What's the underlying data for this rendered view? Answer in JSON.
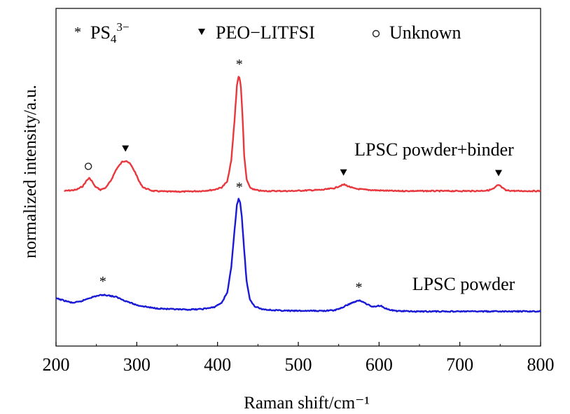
{
  "chart_data": {
    "type": "line",
    "title": "",
    "xlabel": "Raman shift/cm⁻¹",
    "ylabel": "normalized intensity/a.u.",
    "xlim": [
      200,
      800
    ],
    "x_ticks": [
      "200",
      "300",
      "400",
      "500",
      "600",
      "700",
      "800"
    ],
    "y_ticks_labeled": false,
    "grid": false,
    "legend": {
      "placement": "top",
      "items": [
        {
          "marker": "asterisk",
          "label_main": "PS",
          "label_sub": "4",
          "label_sup": "3−"
        },
        {
          "marker": "triangle-down",
          "label": "PEO−LITFSI"
        },
        {
          "marker": "circle-open",
          "label": "Unknown"
        }
      ]
    },
    "series": [
      {
        "name": "LPSC powder+binder",
        "color": "#e8383d",
        "x": [
          210,
          225,
          233,
          238,
          241,
          244,
          248,
          255,
          262,
          268,
          275,
          282,
          287,
          292,
          298,
          303,
          308,
          320,
          340,
          360,
          380,
          395,
          405,
          412,
          417,
          421,
          424,
          426,
          427.5,
          429,
          431,
          433,
          436,
          440,
          446,
          455,
          470,
          490,
          510,
          530,
          545,
          552,
          557,
          562,
          570,
          585,
          600,
          620,
          640,
          660,
          680,
          700,
          720,
          735,
          742,
          746,
          749,
          752,
          757,
          770,
          790,
          800
        ],
        "y": [
          0.02,
          0.03,
          0.06,
          0.11,
          0.13,
          0.11,
          0.06,
          0.03,
          0.05,
          0.11,
          0.21,
          0.27,
          0.28,
          0.25,
          0.18,
          0.1,
          0.05,
          0.02,
          0.015,
          0.015,
          0.02,
          0.03,
          0.05,
          0.1,
          0.28,
          0.62,
          0.92,
          1.0,
          0.98,
          0.9,
          0.65,
          0.32,
          0.12,
          0.05,
          0.03,
          0.02,
          0.02,
          0.02,
          0.025,
          0.03,
          0.045,
          0.065,
          0.075,
          0.06,
          0.04,
          0.03,
          0.025,
          0.02,
          0.02,
          0.02,
          0.02,
          0.02,
          0.02,
          0.025,
          0.04,
          0.065,
          0.07,
          0.05,
          0.025,
          0.02,
          0.02,
          0.02
        ],
        "curve_label": "LPSC powder+binder",
        "markers": [
          {
            "x": 240,
            "symbol": "circle-open"
          },
          {
            "x": 286,
            "symbol": "triangle-down"
          },
          {
            "x": 427,
            "symbol": "asterisk"
          },
          {
            "x": 556,
            "symbol": "triangle-down"
          },
          {
            "x": 748,
            "symbol": "triangle-down"
          }
        ]
      },
      {
        "name": "LPSC powder",
        "color": "#1a1ad6",
        "x": [
          200,
          210,
          220,
          230,
          240,
          250,
          258,
          265,
          275,
          285,
          300,
          320,
          340,
          360,
          380,
          395,
          405,
          412,
          417,
          421,
          424,
          426,
          428,
          430,
          433,
          436,
          440,
          446,
          455,
          470,
          490,
          510,
          530,
          545,
          555,
          563,
          570,
          576,
          580,
          585,
          590,
          595,
          598,
          602,
          606,
          612,
          620,
          640,
          660,
          680,
          700,
          720,
          740,
          760,
          780,
          800
        ],
        "y": [
          0.13,
          0.11,
          0.09,
          0.1,
          0.13,
          0.15,
          0.16,
          0.155,
          0.14,
          0.11,
          0.07,
          0.045,
          0.035,
          0.03,
          0.035,
          0.05,
          0.09,
          0.18,
          0.4,
          0.72,
          0.95,
          1.0,
          0.97,
          0.85,
          0.55,
          0.28,
          0.12,
          0.06,
          0.035,
          0.025,
          0.02,
          0.02,
          0.02,
          0.025,
          0.05,
          0.08,
          0.1,
          0.11,
          0.1,
          0.08,
          0.06,
          0.055,
          0.065,
          0.065,
          0.05,
          0.03,
          0.02,
          0.015,
          0.015,
          0.015,
          0.015,
          0.015,
          0.015,
          0.015,
          0.015,
          0.015
        ],
        "curve_label": "LPSC powder",
        "markers": [
          {
            "x": 258,
            "symbol": "asterisk"
          },
          {
            "x": 427,
            "symbol": "asterisk"
          },
          {
            "x": 575,
            "symbol": "asterisk"
          }
        ]
      }
    ]
  }
}
